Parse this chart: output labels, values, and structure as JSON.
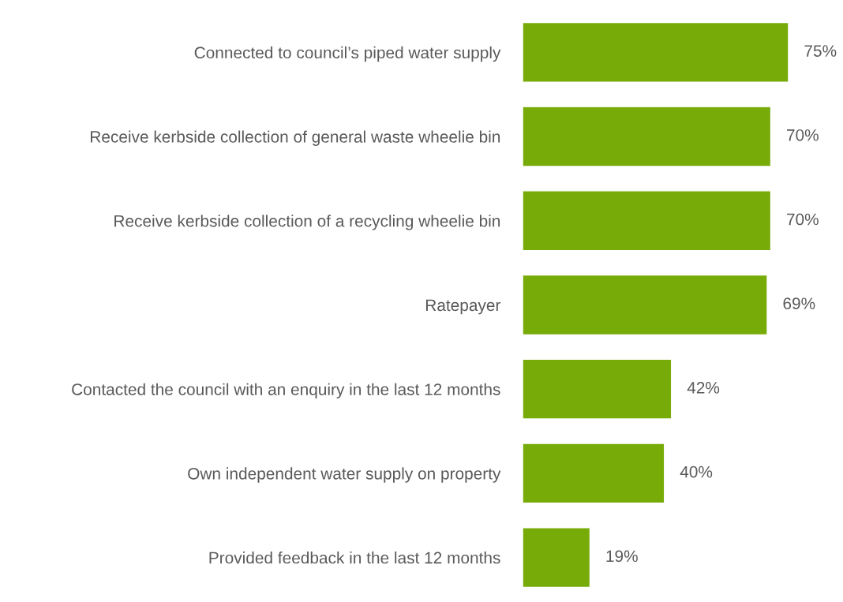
{
  "chart_data": {
    "type": "bar",
    "orientation": "horizontal",
    "categories": [
      "Connected to council’s piped water supply",
      "Receive kerbside collection of general waste wheelie bin",
      "Receive kerbside collection of a recycling wheelie bin",
      "Ratepayer",
      "Contacted the council with an enquiry in the last 12 months",
      "Own independent water supply on property",
      "Provided feedback in the last 12 months"
    ],
    "values": [
      75,
      70,
      70,
      69,
      42,
      40,
      19
    ],
    "value_labels": [
      "75%",
      "70%",
      "70%",
      "69%",
      "42%",
      "40%",
      "19%"
    ],
    "color": "#77ab08",
    "grid": false,
    "legend": false
  }
}
